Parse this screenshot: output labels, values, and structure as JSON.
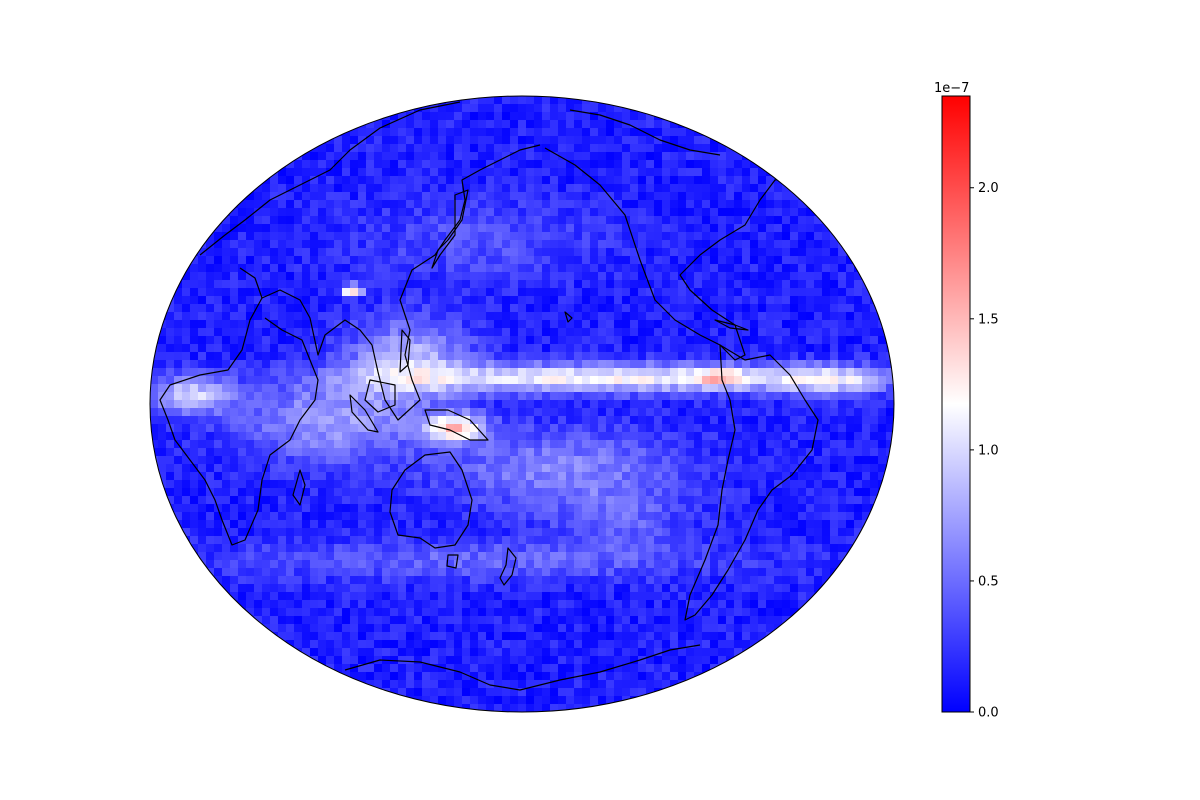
{
  "map": {
    "projection": "elliptical global (Pacific-centered, central longitude ~180°)",
    "colormap": [
      "#0000ff",
      "#ffffff",
      "#ff0000"
    ],
    "coastline_color": "#000000",
    "field_description_features": [
      "ITCZ band along equator",
      "Maritime Continent maximum",
      "SPCZ diagonal band",
      "Himalayan hotspot"
    ]
  },
  "colorbar": {
    "exponent_label": "1e−7",
    "vmin": 0.0,
    "vmax": 2.35,
    "ticks": [
      {
        "value": 0.0,
        "label": "0.0"
      },
      {
        "value": 0.5,
        "label": "0.5"
      },
      {
        "value": 1.0,
        "label": "1.0"
      },
      {
        "value": 1.5,
        "label": "1.5"
      },
      {
        "value": 2.0,
        "label": "2.0"
      }
    ]
  }
}
